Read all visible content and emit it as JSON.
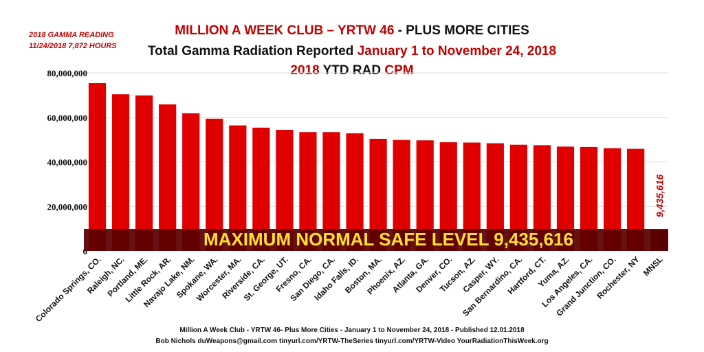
{
  "notes": {
    "line1": "2018 GAMMA READING",
    "line2": "11/24/2018  7,872 HOURS"
  },
  "title": {
    "line1_part1": "MILLION A WEEK CLUB – YRTW 46",
    "line1_part2": " -  PLUS MORE CITIES",
    "line2_part1": "Total Gamma Radiation Reported  ",
    "line2_part2": "January 1 to November 24, 2018",
    "line3_part1": "2018",
    "line3_part2": " YTD RAD ",
    "line3_part3": "CPM"
  },
  "banner": {
    "text": "MAXIMUM NORMAL SAFE LEVEL 9,435,616"
  },
  "footer": {
    "line1": "Million A Week Club - YRTW 46- Plus More Cities - January 1 to November 24, 2018  -  Published 12.01.2018",
    "line2": "Bob Nichols  duWeapons@gmail.com tinyurl.com/YRTW-TheSeries  tinyurl.com/YRTW-Video  YourRadiationThisWeek.org"
  },
  "colors": {
    "bar": "#e00000",
    "bar_stroke": "#ffffff",
    "banner_bg": "#5a0000",
    "banner_text": "#ffe030",
    "grid": "#d8d8d8",
    "mnsl_label": "#c00000"
  },
  "chart_data": {
    "type": "bar",
    "categories": [
      "Colorado Springs, CO.",
      "Raleigh, NC.",
      "Portland, ME.",
      "Little Rock, AR.",
      "Navajo Lake, NM.",
      "Spokane, WA.",
      "Worcester, MA.",
      "Riverside, CA.",
      "St. George, UT.",
      "Fresno, CA.",
      "San Diego, CA.",
      "Idaho Falls, ID.",
      "Boston, MA.",
      "Phoenix, AZ.",
      "Atlanta, GA.",
      "Denver, CO.",
      "Tucson, AZ.",
      "Casper, WY.",
      "San Bernardino, CA.",
      "Hartford, CT.",
      "Yuma, AZ.",
      "Los Angeles, CA.",
      "Grand Junction, CO.",
      "Rochester, NY",
      "MNSL"
    ],
    "values": [
      75500000,
      70500000,
      70000000,
      66000000,
      62000000,
      59500000,
      56500000,
      55500000,
      54500000,
      53500000,
      53500000,
      53000000,
      50500000,
      50000000,
      49800000,
      49000000,
      48800000,
      48500000,
      47800000,
      47600000,
      47000000,
      46800000,
      46300000,
      46000000,
      9435616
    ],
    "mnsl_label": "9,435,616",
    "yticks": [
      0,
      20000000,
      40000000,
      60000000,
      80000000
    ],
    "ytick_labels": [
      "0",
      "20,000,000",
      "40,000,000",
      "60,000,000",
      "80,000,000"
    ],
    "ylim": [
      0,
      80000000
    ],
    "title": "Total Gamma Radiation Reported January 1 to November 24, 2018",
    "xlabel": "",
    "ylabel": "2018 YTD RAD CPM"
  }
}
